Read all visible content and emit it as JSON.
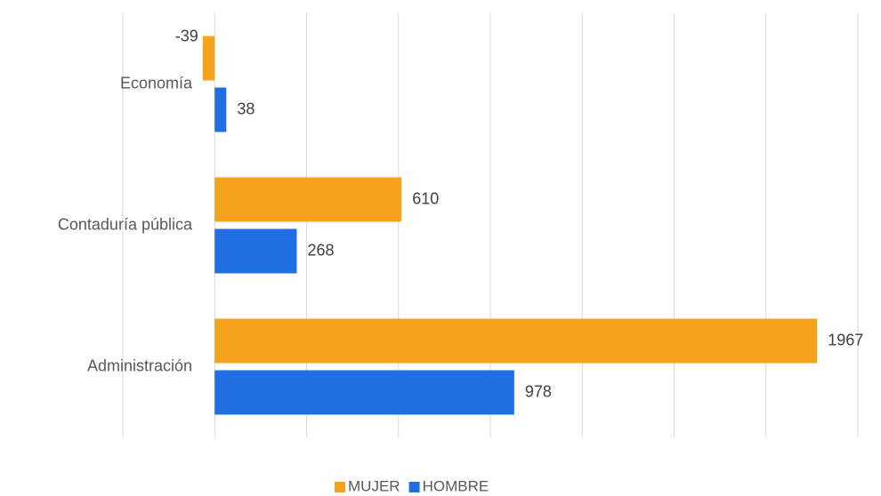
{
  "chart_data": {
    "type": "hbar",
    "categories": [
      "Economía",
      "Contaduría pública",
      "Administración"
    ],
    "series": [
      {
        "name": "MUJER",
        "color": "#f5a31d",
        "values": [
          -39,
          610,
          1967
        ]
      },
      {
        "name": "HOMBRE",
        "color": "#1f6fe3",
        "values": [
          38,
          268,
          978
        ]
      }
    ],
    "xlim": [
      -300,
      2100
    ],
    "xticks": [
      -300,
      0,
      300,
      600,
      900,
      1200,
      1500,
      1800,
      2100
    ],
    "grid": true,
    "legend": "bottom"
  }
}
